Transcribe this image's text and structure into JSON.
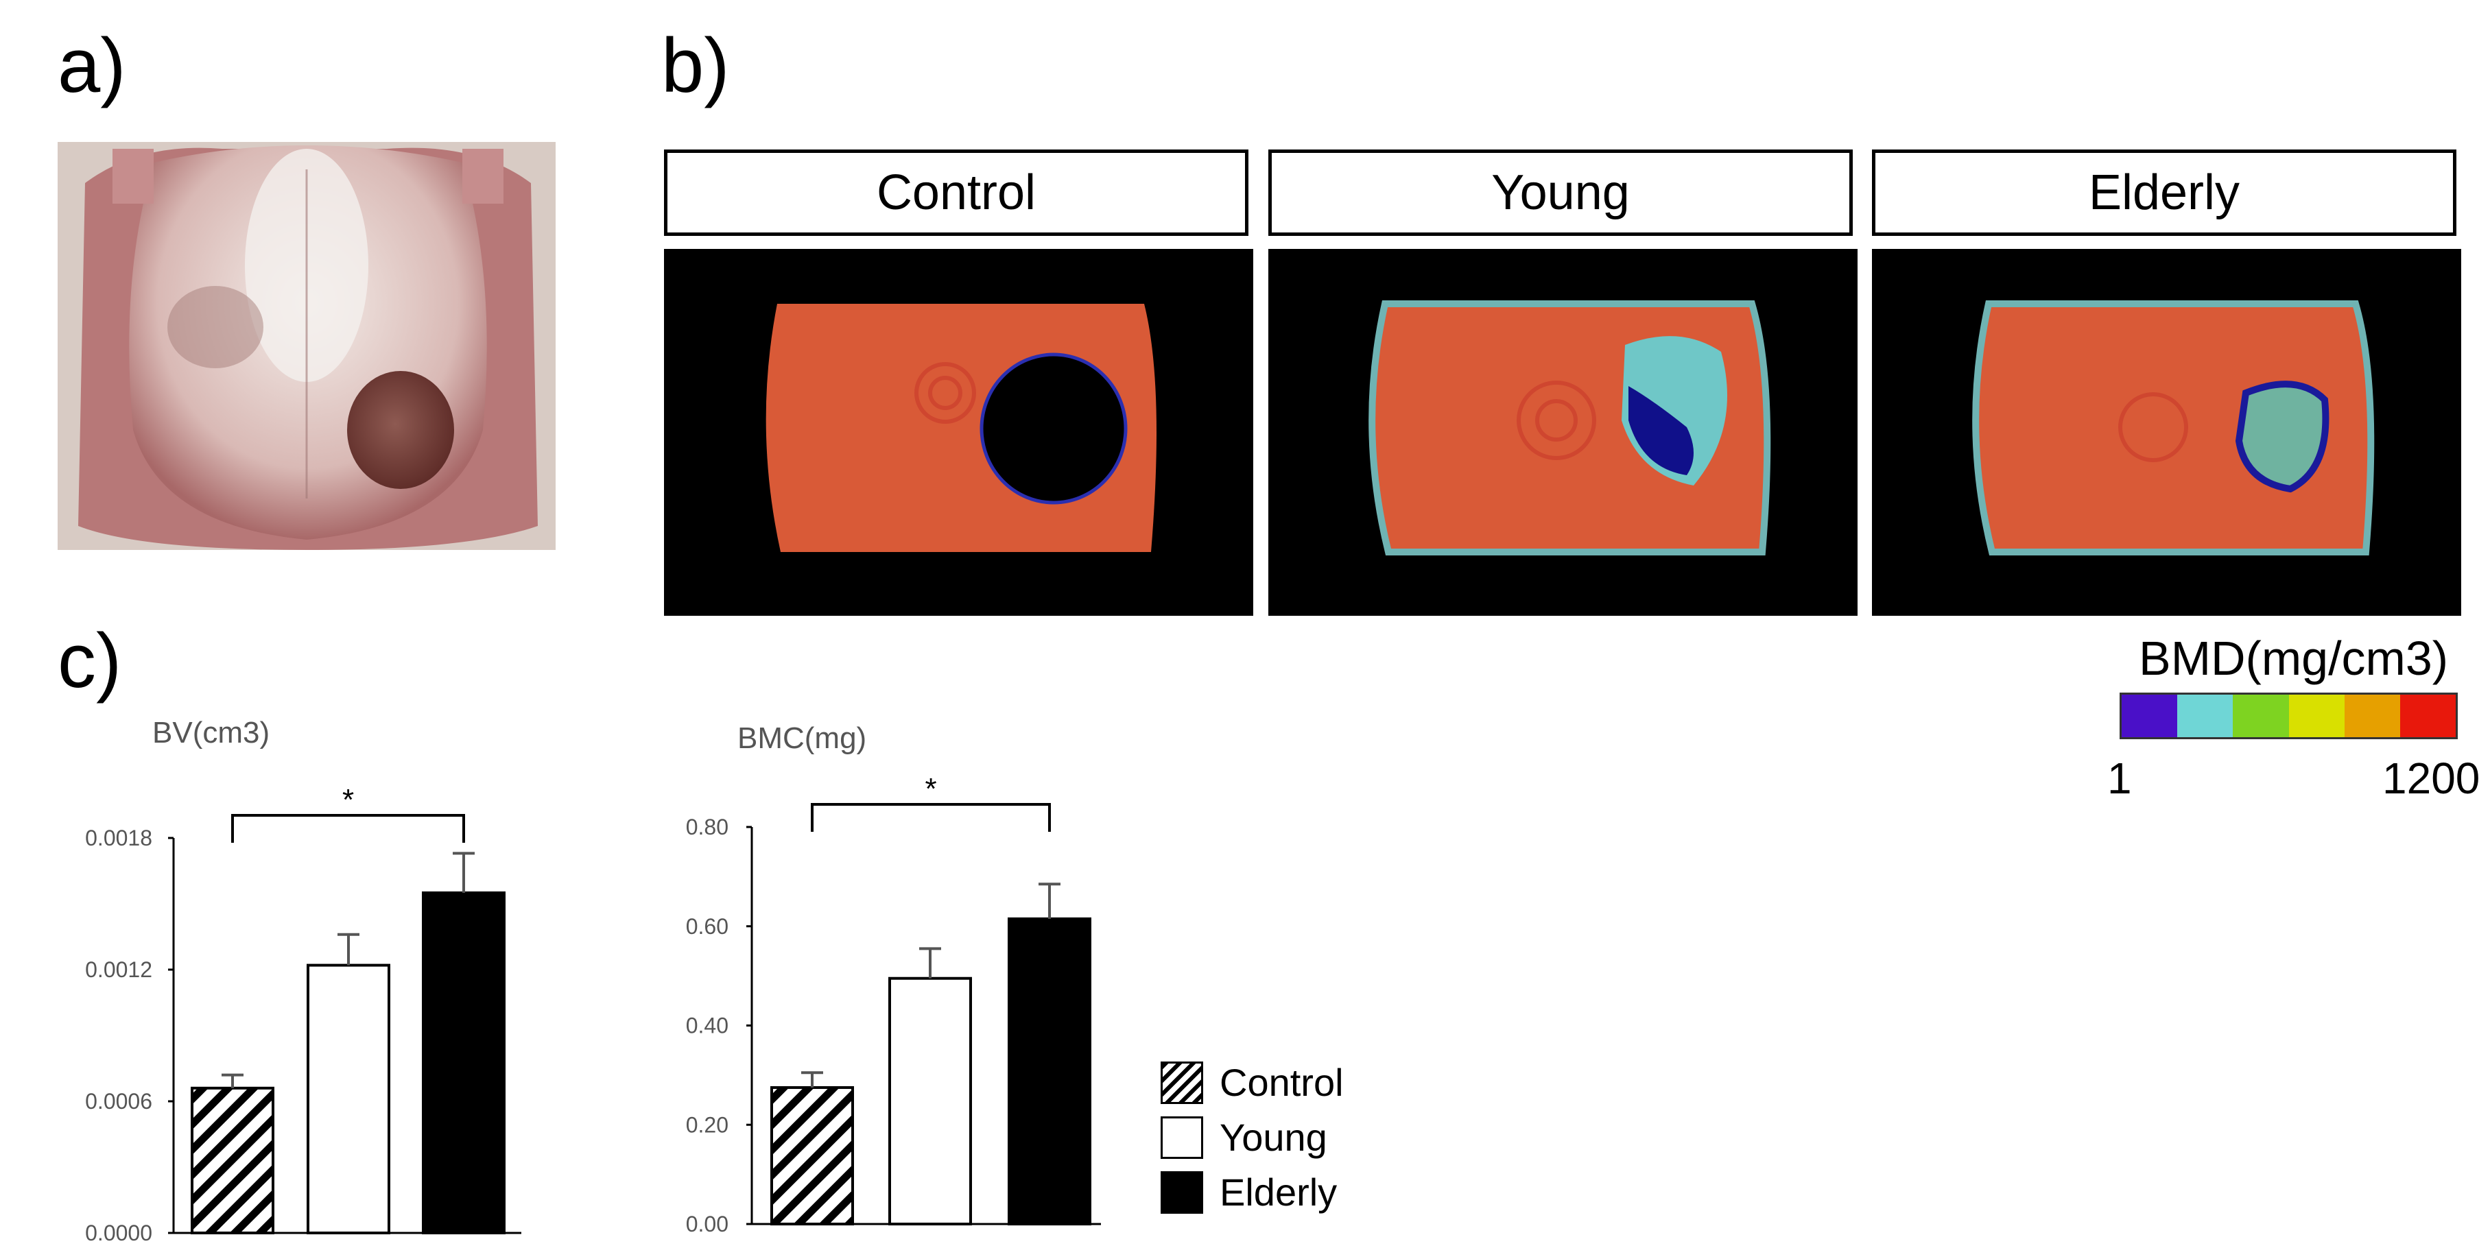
{
  "panels": {
    "a": "a)",
    "b": "b)",
    "c": "c)"
  },
  "scan_groups": [
    "Control",
    "Young",
    "Elderly"
  ],
  "colorbar": {
    "title": "BMD(mg/cm3)",
    "min_label": "1",
    "max_label": "1200",
    "colors": [
      "#4a10c8",
      "#6fd6d6",
      "#7ed321",
      "#d9e000",
      "#e6a000",
      "#e8180c"
    ]
  },
  "legend": [
    {
      "label": "Control",
      "style": "hatched"
    },
    {
      "label": "Young",
      "style": "white"
    },
    {
      "label": "Elderly",
      "style": "black"
    }
  ],
  "chart_data": [
    {
      "type": "bar",
      "title": "",
      "ylabel": "BV(cm3)",
      "categories": [
        "Control",
        "Young",
        "Elderly"
      ],
      "values": [
        0.00066,
        0.00122,
        0.00155
      ],
      "errors": [
        6e-05,
        0.00014,
        0.00018
      ],
      "ylim": [
        0,
        0.0018
      ],
      "yticks": [
        "0.0000",
        "0.0006",
        "0.0012",
        "0.0018"
      ],
      "significance": {
        "from": "Control",
        "to": "Elderly",
        "label": "*"
      }
    },
    {
      "type": "bar",
      "title": "",
      "ylabel": "BMC(mg)",
      "categories": [
        "Control",
        "Young",
        "Elderly"
      ],
      "values": [
        0.275,
        0.495,
        0.615
      ],
      "errors": [
        0.03,
        0.06,
        0.07
      ],
      "ylim": [
        0,
        0.8
      ],
      "yticks": [
        "0.00",
        "0.20",
        "0.40",
        "0.60",
        "0.80"
      ],
      "significance": {
        "from": "Control",
        "to": "Elderly",
        "label": "*"
      }
    }
  ]
}
